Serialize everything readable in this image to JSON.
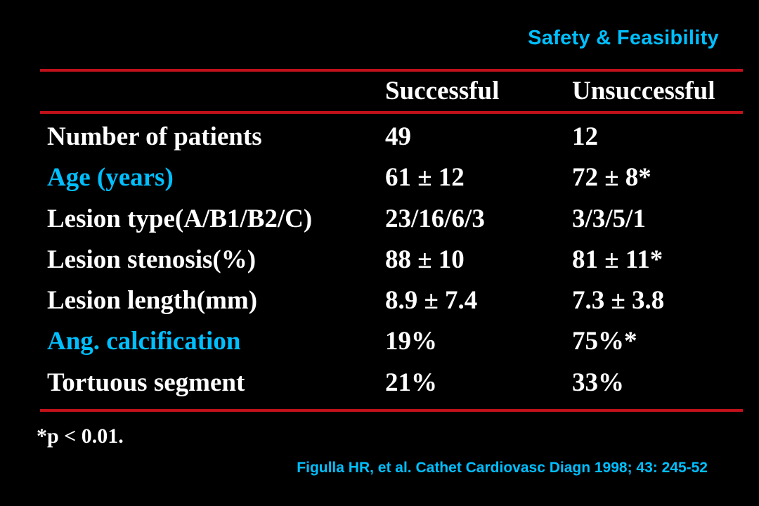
{
  "slide": {
    "title": "Safety & Feasibility",
    "accent_color": "#00BFFF",
    "rule_color": "#C0111B"
  },
  "table": {
    "headers": [
      "",
      "Successful",
      "Unsuccessful"
    ],
    "rows": [
      {
        "label": "Number of patients",
        "successful": "49",
        "unsuccessful": "12",
        "highlight": false
      },
      {
        "label": "Age (years)",
        "successful": "61 ± 12",
        "unsuccessful": "72 ± 8*",
        "highlight": true
      },
      {
        "label": "Lesion type(A/B1/B2/C)",
        "successful": "23/16/6/3",
        "unsuccessful": "3/3/5/1",
        "highlight": false
      },
      {
        "label": "Lesion stenosis(%)",
        "successful": "88 ± 10",
        "unsuccessful": "81 ± 11*",
        "highlight": false
      },
      {
        "label": "Lesion length(mm)",
        "successful": "8.9 ± 7.4",
        "unsuccessful": "7.3 ± 3.8",
        "highlight": false
      },
      {
        "label": "Ang. calcification",
        "successful": "19%",
        "unsuccessful": "75%*",
        "highlight": true
      },
      {
        "label": "Tortuous segment",
        "successful": "21%",
        "unsuccessful": "33%",
        "highlight": false
      }
    ]
  },
  "footnote": "*p < 0.01.",
  "citation": "Figulla HR, et al. Cathet Cardiovasc Diagn 1998; 43: 245-52"
}
